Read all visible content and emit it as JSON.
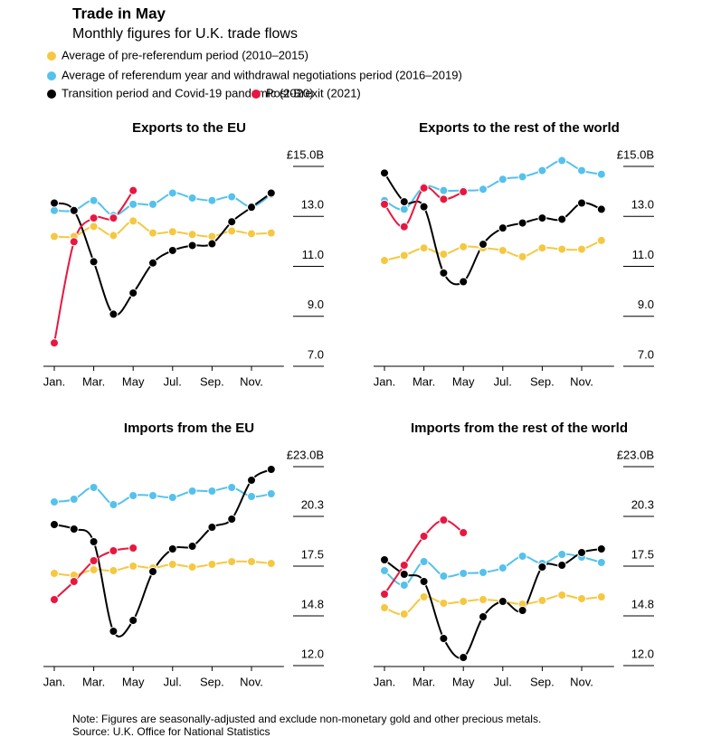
{
  "title": "Trade in May",
  "subtitle": "Monthly figures for U.K. trade flows",
  "note": "Note: Figures are seasonally-adjusted and exclude non-monetary gold and other precious metals.",
  "source": "Source: U.K. Office for National Statistics",
  "chart_data": [
    {
      "type": "line",
      "title": "Exports to the EU",
      "categories": [
        "Jan.",
        null,
        "Mar.",
        null,
        "May",
        null,
        "Jul.",
        null,
        "Sep.",
        null,
        "Nov.",
        null
      ],
      "ylim": [
        7,
        15
      ],
      "yticks": [
        {
          "value": 15,
          "label": "£15.0B"
        },
        {
          "value": 13,
          "label": "13.0"
        },
        {
          "value": 11,
          "label": "11.0"
        },
        {
          "value": 9,
          "label": "9.0"
        },
        {
          "value": 7,
          "label": "7.0"
        }
      ],
      "series": [
        {
          "name": "Average of pre-referendum period  (2010–2015)",
          "color": "#f5c842",
          "values": [
            11.76,
            11.76,
            12.16,
            11.8,
            12.38,
            11.9,
            11.95,
            11.84,
            11.76,
            11.98,
            11.87,
            11.9
          ]
        },
        {
          "name": "Average of referendum year and withdrawal negotiations period (2016–2019)",
          "color": "#55c1ec",
          "values": [
            12.8,
            12.8,
            13.2,
            12.6,
            13.05,
            13.05,
            13.5,
            13.3,
            13.2,
            13.35,
            12.95,
            13.45
          ]
        },
        {
          "name": "Transition period and Covid-19 pandemic (2020)",
          "color": "#000000",
          "values": [
            13.1,
            12.8,
            10.75,
            8.65,
            9.5,
            10.7,
            11.2,
            11.4,
            11.47,
            12.35,
            12.93,
            13.5
          ]
        },
        {
          "name": "Post-Brexit (2021)",
          "color": "#e8173f",
          "values": [
            7.5,
            11.55,
            12.5,
            12.5,
            13.6,
            null,
            null,
            null,
            null,
            null,
            null,
            null
          ]
        }
      ]
    },
    {
      "type": "line",
      "title": "Exports to the rest of the world",
      "categories": [
        "Jan.",
        null,
        "Mar.",
        null,
        "May",
        null,
        "Jul.",
        null,
        "Sep.",
        null,
        "Nov.",
        null
      ],
      "ylim": [
        7,
        15
      ],
      "yticks": [
        {
          "value": 15,
          "label": "£15.0B"
        },
        {
          "value": 13,
          "label": "13.0"
        },
        {
          "value": 11,
          "label": "11.0"
        },
        {
          "value": 9,
          "label": "9.0"
        },
        {
          "value": 7,
          "label": "7.0"
        }
      ],
      "series": [
        {
          "name": "Average of pre-referendum period  (2010–2015)",
          "color": "#f5c842",
          "values": [
            10.8,
            11.0,
            11.3,
            11.05,
            11.35,
            11.3,
            11.2,
            10.95,
            11.3,
            11.25,
            11.25,
            11.6
          ]
        },
        {
          "name": "Average of referendum year and withdrawal negotiations period (2016–2019)",
          "color": "#55c1ec",
          "values": [
            13.2,
            12.85,
            13.75,
            13.6,
            13.6,
            13.65,
            14.05,
            14.15,
            14.4,
            14.8,
            14.4,
            14.25
          ]
        },
        {
          "name": "Transition period and Covid-19 pandemic (2020)",
          "color": "#000000",
          "values": [
            14.3,
            13.15,
            12.95,
            10.3,
            9.95,
            11.45,
            12.1,
            12.3,
            12.5,
            12.45,
            13.1,
            12.85
          ]
        },
        {
          "name": "Post-Brexit (2021)",
          "color": "#e8173f",
          "values": [
            13.05,
            12.15,
            13.7,
            13.25,
            13.55,
            null,
            null,
            null,
            null,
            null,
            null,
            null
          ]
        }
      ]
    },
    {
      "type": "line",
      "title": "Imports from the EU",
      "categories": [
        "Jan.",
        null,
        "Mar.",
        null,
        "May",
        null,
        "Jul.",
        null,
        "Sep.",
        null,
        "Nov.",
        null
      ],
      "ylim": [
        12,
        23
      ],
      "yticks": [
        {
          "value": 23,
          "label": "£23.0B"
        },
        {
          "value": 20.25,
          "label": "20.3"
        },
        {
          "value": 17.5,
          "label": "17.5"
        },
        {
          "value": 14.75,
          "label": "14.8"
        },
        {
          "value": 12,
          "label": "12.0"
        }
      ],
      "series": [
        {
          "name": "Average of pre-referendum period  (2010–2015)",
          "color": "#f5c842",
          "values": [
            16.5,
            16.4,
            16.7,
            16.65,
            16.9,
            16.8,
            17.0,
            16.85,
            17.0,
            17.15,
            17.15,
            17.05
          ]
        },
        {
          "name": "Average of referendum year and withdrawal negotiations period (2016–2019)",
          "color": "#55c1ec",
          "values": [
            20.45,
            20.6,
            21.25,
            20.3,
            20.8,
            20.8,
            20.7,
            21.05,
            21.05,
            21.25,
            20.75,
            20.9
          ]
        },
        {
          "name": "Transition period and Covid-19 pandemic (2020)",
          "color": "#000000",
          "values": [
            19.2,
            18.95,
            18.25,
            13.3,
            13.9,
            16.6,
            17.85,
            18.0,
            19.05,
            19.5,
            21.65,
            22.25
          ]
        },
        {
          "name": "Post-Brexit (2021)",
          "color": "#e8173f",
          "values": [
            15.05,
            16.05,
            17.2,
            17.75,
            17.9,
            null,
            null,
            null,
            null,
            null,
            null,
            null
          ]
        }
      ]
    },
    {
      "type": "line",
      "title": "Imports from the rest of the world",
      "categories": [
        "Jan.",
        null,
        "Mar.",
        null,
        "May",
        null,
        "Jul.",
        null,
        "Sep.",
        null,
        "Nov.",
        null
      ],
      "ylim": [
        12,
        23
      ],
      "yticks": [
        {
          "value": 23,
          "label": "£23.0B"
        },
        {
          "value": 20.25,
          "label": "20.3"
        },
        {
          "value": 17.5,
          "label": "17.5"
        },
        {
          "value": 14.75,
          "label": "14.8"
        },
        {
          "value": 12,
          "label": "12.0"
        }
      ],
      "series": [
        {
          "name": "Average of pre-referendum period  (2010–2015)",
          "color": "#f5c842",
          "values": [
            14.6,
            14.25,
            15.2,
            14.85,
            14.95,
            15.05,
            14.95,
            14.8,
            15.0,
            15.3,
            15.1,
            15.2
          ]
        },
        {
          "name": "Average of referendum year and withdrawal negotiations period (2016–2019)",
          "color": "#55c1ec",
          "values": [
            16.65,
            15.85,
            17.15,
            16.35,
            16.5,
            16.55,
            16.8,
            17.45,
            17.05,
            17.55,
            17.4,
            17.1
          ]
        },
        {
          "name": "Transition period and Covid-19 pandemic (2020)",
          "color": "#000000",
          "values": [
            17.25,
            16.45,
            16.05,
            12.9,
            11.85,
            14.1,
            14.95,
            14.45,
            16.85,
            16.95,
            17.65,
            17.85
          ]
        },
        {
          "name": "Post-Brexit (2021)",
          "color": "#e8173f",
          "values": [
            15.35,
            16.95,
            18.55,
            19.45,
            18.75,
            null,
            null,
            null,
            null,
            null,
            null,
            null
          ]
        }
      ]
    }
  ]
}
